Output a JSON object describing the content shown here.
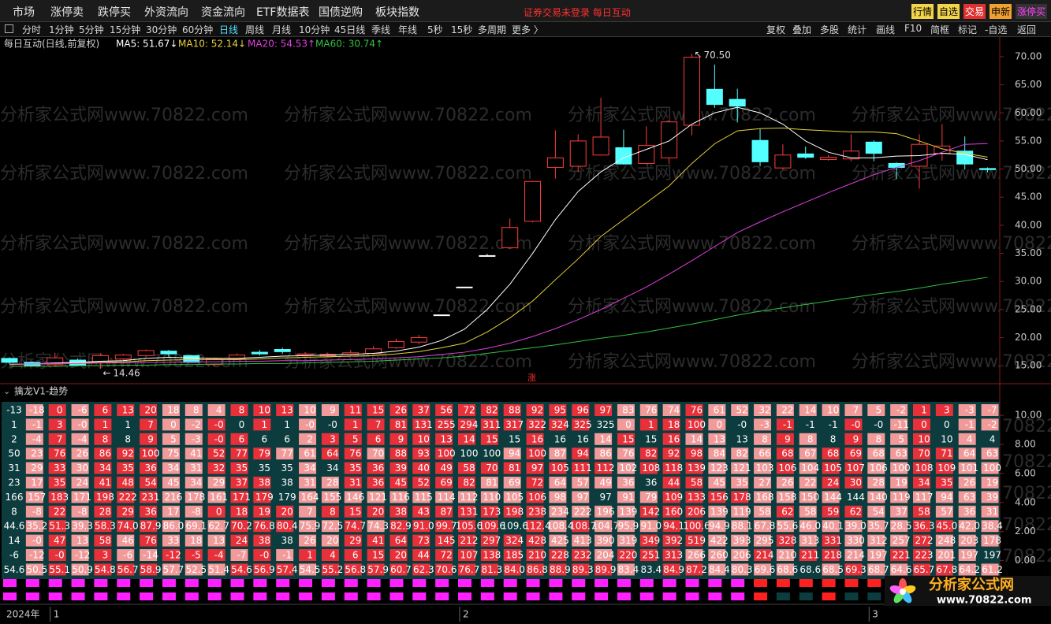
{
  "menu": {
    "items": [
      "市场",
      "涨停卖",
      "跌停买",
      "外资流向",
      "资金流向",
      "ETF数据表",
      "国债逆购",
      "板块指数"
    ],
    "status": "证券交易未登录  每日互动",
    "buttons": [
      "行情",
      "自选",
      "交易",
      "申新",
      "涨停买"
    ]
  },
  "toolbar": {
    "periods": [
      "分时",
      "1分钟",
      "5分钟",
      "15分钟",
      "30分钟",
      "60分钟",
      "日线",
      "周线",
      "月线",
      "10分钟",
      "45日线",
      "季线",
      "年线",
      "5秒",
      "15秒",
      "多周期",
      "更多 〉"
    ],
    "actions": [
      "复权",
      "叠加",
      "多股",
      "统计",
      "画线",
      "F10",
      "简框",
      "标记",
      "-自选",
      "返回"
    ]
  },
  "watermark": "分析家公式网www.70822.com",
  "logo": {
    "name": "分析家公式网",
    "url": "www.70822.com"
  },
  "x_axis_year": "2024年",
  "chart_data": [
    {
      "type": "candlestick",
      "title": "每日互动(日线,前复权)",
      "categories": [
        null,
        null,
        "1",
        null,
        null,
        null,
        null,
        null,
        null,
        null,
        null,
        null,
        null,
        null,
        null,
        null,
        null,
        null,
        null,
        null,
        "2",
        null,
        null,
        null,
        null,
        null,
        null,
        null,
        null,
        null,
        null,
        null,
        null,
        null,
        null,
        null,
        null,
        null,
        "3",
        null,
        null,
        null,
        null,
        null
      ],
      "open": [
        16.3,
        15.6,
        15.2,
        16.0,
        15.6,
        16.2,
        16.8,
        17.6,
        16.8,
        15.2,
        16.2,
        17.4,
        17.9,
        16.9,
        16.8,
        17.0,
        17.2,
        18.2,
        19.2,
        24.05,
        29.0,
        34.6,
        36.0,
        40.7,
        50.3,
        50.5,
        52.5,
        53.8,
        51.0,
        52.0,
        57.8,
        64.2,
        62.4,
        55.1,
        50.2,
        52.7,
        51.7,
        51.8,
        54.8,
        51.0,
        50.5,
        52.8,
        53.2,
        50.1
      ],
      "high": [
        16.5,
        15.8,
        17.3,
        16.3,
        17.2,
        17.1,
        17.9,
        17.8,
        16.9,
        16.5,
        17.2,
        17.8,
        18.2,
        17.4,
        17.3,
        17.8,
        18.5,
        19.8,
        20.5,
        24.05,
        29.0,
        34.9,
        41.2,
        47.9,
        56.9,
        56.2,
        62.7,
        57.0,
        57.6,
        58.7,
        70.5,
        68.6,
        64.3,
        57.1,
        54.4,
        54.0,
        52.5,
        56.2,
        55.1,
        51.2,
        56.2,
        58.0,
        55.8,
        50.3
      ],
      "low": [
        15.3,
        14.8,
        14.9,
        14.9,
        14.46,
        15.9,
        16.5,
        16.6,
        15.5,
        14.9,
        16.0,
        16.8,
        17.1,
        16.8,
        16.6,
        16.8,
        17.0,
        18.0,
        18.8,
        24.05,
        29.0,
        34.4,
        35.8,
        40.5,
        48.3,
        49.5,
        52.4,
        50.8,
        50.8,
        50.9,
        56.0,
        60.9,
        58.3,
        50.5,
        49.9,
        51.8,
        51.5,
        51.4,
        51.4,
        48.2,
        46.5,
        51.5,
        49.9,
        49.4
      ],
      "close": [
        15.6,
        15.0,
        16.4,
        15.1,
        16.8,
        16.9,
        17.7,
        17.1,
        15.6,
        16.2,
        16.9,
        17.1,
        17.5,
        17.1,
        17.0,
        17.3,
        18.0,
        19.3,
        20.0,
        24.05,
        29.0,
        34.6,
        39.6,
        47.8,
        52.0,
        55.0,
        55.7,
        50.9,
        54.2,
        58.4,
        69.9,
        61.5,
        61.2,
        51.3,
        52.5,
        52.1,
        52.1,
        53.2,
        52.8,
        50.3,
        54.4,
        54.1,
        50.9,
        49.9
      ],
      "up_color": "#ff3c3c",
      "down_color": "#54ffff",
      "flat_color": "#ffffff",
      "series": [
        {
          "name": "MA5: 51.67↓",
          "color": "#ffffff",
          "values": [
            15.3,
            15.3,
            15.5,
            15.6,
            15.8,
            15.9,
            16.3,
            16.5,
            16.4,
            16.3,
            16.3,
            16.5,
            16.7,
            16.8,
            16.9,
            17.0,
            17.2,
            17.6,
            18.3,
            19.5,
            21.5,
            25.0,
            29.5,
            35.0,
            41.0,
            46.0,
            49.5,
            52.0,
            53.5,
            55.0,
            58.0,
            60.0,
            61.0,
            60.0,
            58.0,
            55.0,
            53.0,
            52.0,
            52.0,
            52.3,
            52.4,
            52.8,
            52.6,
            51.67
          ]
        },
        {
          "name": "MA10: 52.14↓",
          "color": "#e8d23c",
          "values": [
            15.2,
            15.3,
            15.4,
            15.5,
            15.6,
            15.7,
            15.9,
            16.0,
            16.1,
            16.1,
            16.1,
            16.2,
            16.4,
            16.5,
            16.6,
            16.7,
            16.8,
            17.1,
            17.5,
            18.2,
            19.0,
            21.0,
            23.5,
            26.5,
            30.3,
            34.0,
            38.0,
            41.0,
            44.0,
            47.0,
            51.0,
            54.5,
            56.8,
            57.2,
            57.3,
            57.0,
            56.8,
            56.6,
            56.6,
            56.3,
            55.0,
            53.6,
            52.8,
            52.14
          ]
        },
        {
          "name": "MA20: 54.53↑",
          "color": "#e040e0",
          "values": [
            15.3,
            15.3,
            15.4,
            15.4,
            15.5,
            15.5,
            15.6,
            15.6,
            15.7,
            15.7,
            15.8,
            15.8,
            15.9,
            15.9,
            16.0,
            16.1,
            16.2,
            16.4,
            16.6,
            17.0,
            17.4,
            18.1,
            19.0,
            20.2,
            21.6,
            23.2,
            25.0,
            27.0,
            29.0,
            31.3,
            33.7,
            36.2,
            38.7,
            40.6,
            42.4,
            44.1,
            45.8,
            47.4,
            49.0,
            50.3,
            51.5,
            53.0,
            54.4,
            54.53
          ]
        },
        {
          "name": "MA60: 30.74↑",
          "color": "#30c040",
          "values": [
            14.9,
            14.9,
            14.9,
            15.0,
            15.0,
            15.1,
            15.1,
            15.2,
            15.2,
            15.3,
            15.3,
            15.4,
            15.4,
            15.5,
            15.6,
            15.7,
            15.8,
            16.0,
            16.2,
            16.4,
            16.7,
            17.2,
            17.7,
            18.2,
            18.7,
            19.3,
            19.9,
            20.4,
            21.0,
            21.7,
            22.4,
            23.2,
            24.0,
            24.7,
            25.3,
            25.9,
            26.5,
            27.1,
            27.7,
            28.2,
            28.8,
            29.5,
            30.1,
            30.74
          ]
        }
      ],
      "high_label": {
        "value": 70.5,
        "label": "70.50"
      },
      "low_label": {
        "value": 14.46,
        "label": "14.46"
      },
      "limit_mark": "涨",
      "ylim": [
        11.8,
        73.5
      ],
      "yticks": [
        {
          "value": 15,
          "label": "15.00"
        },
        {
          "value": 20,
          "label": "20.00"
        },
        {
          "value": 25,
          "label": "25.00"
        },
        {
          "value": 30,
          "label": "30.00"
        },
        {
          "value": 35,
          "label": "35.00"
        },
        {
          "value": 40,
          "label": "40.00"
        },
        {
          "value": 45,
          "label": "45.00"
        },
        {
          "value": 50,
          "label": "50.00"
        },
        {
          "value": 55,
          "label": "55.00"
        },
        {
          "value": 60,
          "label": "60.00"
        },
        {
          "value": 65,
          "label": "65.00"
        },
        {
          "value": 70,
          "label": "70.00"
        }
      ],
      "grid": false
    },
    {
      "type": "heatmap-table",
      "title": "擒龙V1-趋势",
      "rows": [
        [
          "-13",
          "-18",
          "0",
          "-6",
          "6",
          "13",
          "20",
          "18",
          "8",
          "4",
          "8",
          "10",
          "13",
          "10",
          "9",
          "11",
          "15",
          "26",
          "37",
          "56",
          "72",
          "82",
          "88",
          "92",
          "95",
          "96",
          "97",
          "83",
          "76",
          "74",
          "76",
          "61",
          "52",
          "32",
          "22",
          "14",
          "10",
          "7",
          "5",
          "-2",
          "1",
          "3",
          "-3",
          "-7"
        ],
        [
          "1",
          "-1",
          "3",
          "-0",
          "1",
          "1",
          "7",
          "0",
          "-2",
          "-0",
          "0",
          "1",
          "1",
          "-0",
          "-0",
          "1",
          "7",
          "81",
          "131",
          "255",
          "294",
          "311",
          "317",
          "322",
          "324",
          "325",
          "325",
          "0",
          "1",
          "18",
          "100",
          "0",
          "-0",
          "-3",
          "-1",
          "-1",
          "-1",
          "-0",
          "-0",
          "-11",
          "0",
          "0",
          "-1",
          "-2"
        ],
        [
          "2",
          "-4",
          "7",
          "-4",
          "8",
          "8",
          "9",
          "5",
          "-3",
          "-0",
          "6",
          "6",
          "6",
          "2",
          "3",
          "5",
          "6",
          "9",
          "10",
          "13",
          "14",
          "15",
          "15",
          "16",
          "16",
          "16",
          "14",
          "15",
          "15",
          "16",
          "14",
          "13",
          "13",
          "8",
          "9",
          "8",
          "8",
          "9",
          "8",
          "5",
          "10",
          "10",
          "4",
          "4"
        ],
        [
          "50",
          "23",
          "76",
          "26",
          "86",
          "92",
          "100",
          "75",
          "41",
          "52",
          "77",
          "79",
          "77",
          "61",
          "64",
          "76",
          "70",
          "88",
          "93",
          "100",
          "100",
          "100",
          "94",
          "100",
          "87",
          "94",
          "86",
          "76",
          "82",
          "92",
          "98",
          "84",
          "82",
          "66",
          "68",
          "67",
          "68",
          "69",
          "68",
          "63",
          "70",
          "71",
          "64",
          "63"
        ],
        [
          "31",
          "29",
          "33",
          "30",
          "34",
          "35",
          "36",
          "34",
          "31",
          "32",
          "35",
          "35",
          "35",
          "34",
          "34",
          "35",
          "36",
          "39",
          "40",
          "49",
          "58",
          "70",
          "81",
          "97",
          "105",
          "111",
          "112",
          "102",
          "108",
          "118",
          "139",
          "123",
          "121",
          "103",
          "106",
          "104",
          "105",
          "107",
          "106",
          "100",
          "108",
          "109",
          "101",
          "100"
        ],
        [
          "23",
          "17",
          "35",
          "24",
          "41",
          "48",
          "54",
          "45",
          "34",
          "29",
          "37",
          "38",
          "38",
          "31",
          "28",
          "31",
          "36",
          "45",
          "52",
          "69",
          "82",
          "81",
          "69",
          "72",
          "64",
          "57",
          "49",
          "36",
          "36",
          "44",
          "58",
          "45",
          "35",
          "27",
          "26",
          "22",
          "24",
          "30",
          "28",
          "19",
          "34",
          "35",
          "26",
          "19"
        ],
        [
          "166",
          "157",
          "183",
          "171",
          "198",
          "222",
          "231",
          "216",
          "178",
          "161",
          "171",
          "179",
          "179",
          "164",
          "155",
          "146",
          "121",
          "116",
          "115",
          "114",
          "112",
          "110",
          "105",
          "106",
          "98",
          "97",
          "97",
          "91",
          "79",
          "109",
          "133",
          "156",
          "178",
          "168",
          "158",
          "150",
          "144",
          "144",
          "140",
          "119",
          "117",
          "94",
          "63",
          "39"
        ],
        [
          "8",
          "-8",
          "22",
          "-8",
          "28",
          "29",
          "36",
          "17",
          "-8",
          "0",
          "18",
          "19",
          "20",
          "7",
          "8",
          "15",
          "20",
          "38",
          "43",
          "87",
          "131",
          "173",
          "198",
          "238",
          "234",
          "222",
          "196",
          "139",
          "142",
          "160",
          "206",
          "139",
          "119",
          "58",
          "62",
          "58",
          "59",
          "62",
          "54",
          "37",
          "58",
          "57",
          "36",
          "31"
        ],
        [
          "44.6",
          "35.2",
          "51.3",
          "39.3",
          "58.3",
          "74.0",
          "87.9",
          "86.0",
          "69.1",
          "62.7",
          "70.2",
          "76.8",
          "80.4",
          "75.9",
          "72.5",
          "74.7",
          "74.3",
          "82.9",
          "91.0",
          "99.7",
          "105.6",
          "109.6",
          "109.6",
          "112.4",
          "108.4",
          "108.7",
          "104.7",
          "95.9",
          "91.0",
          "94.1",
          "100.6",
          "94.9",
          "88.1",
          "67.8",
          "55.6",
          "46.0",
          "40.1",
          "39.0",
          "35.7",
          "28.5",
          "36.3",
          "45.0",
          "42.0",
          "38.4"
        ],
        [
          "14",
          "-0",
          "47",
          "13",
          "58",
          "46",
          "76",
          "33",
          "18",
          "13",
          "24",
          "38",
          "38",
          "26",
          "20",
          "29",
          "41",
          "64",
          "73",
          "145",
          "212",
          "297",
          "324",
          "428",
          "425",
          "413",
          "390",
          "319",
          "349",
          "392",
          "519",
          "422",
          "393",
          "295",
          "328",
          "313",
          "331",
          "330",
          "312",
          "257",
          "272",
          "248",
          "203",
          "178"
        ],
        [
          "-6",
          "-12",
          "-0",
          "-12",
          "3",
          "-6",
          "-14",
          "-12",
          "-5",
          "-4",
          "-7",
          "-0",
          "-1",
          "1",
          "4",
          "6",
          "15",
          "20",
          "44",
          "72",
          "107",
          "138",
          "185",
          "210",
          "228",
          "232",
          "204",
          "220",
          "251",
          "313",
          "266",
          "260",
          "206",
          "214",
          "210",
          "211",
          "218",
          "214",
          "197",
          "221",
          "223",
          "201",
          "197",
          "197"
        ],
        [
          "54.6",
          "50.5",
          "55.1",
          "50.9",
          "54.8",
          "56.7",
          "58.9",
          "57.7",
          "52.5",
          "51.4",
          "54.6",
          "56.9",
          "57.4",
          "54.5",
          "55.2",
          "56.8",
          "57.9",
          "60.7",
          "62.3",
          "70.6",
          "76.7",
          "81.3",
          "84.0",
          "86.8",
          "88.9",
          "89.3",
          "89.9",
          "83.4",
          "83.4",
          "84.9",
          "87.2",
          "84.4",
          "80.3",
          "69.6",
          "68.6",
          "68.6",
          "68.5",
          "69.3",
          "68.7",
          "64.6",
          "65.7",
          "67.8",
          "64.2",
          "61.2"
        ]
      ],
      "up_color": "#e8303a",
      "down_color": "#f29a9a",
      "ylim": [
        -1.0,
        11.2
      ],
      "yticks": [
        {
          "value": 0,
          "label": "0.00"
        },
        {
          "value": 2,
          "label": "2.00"
        },
        {
          "value": 4,
          "label": "4.00"
        },
        {
          "value": 6,
          "label": "6.00"
        },
        {
          "value": 8,
          "label": "8.00"
        },
        {
          "value": 10,
          "label": "10.00"
        }
      ]
    }
  ]
}
